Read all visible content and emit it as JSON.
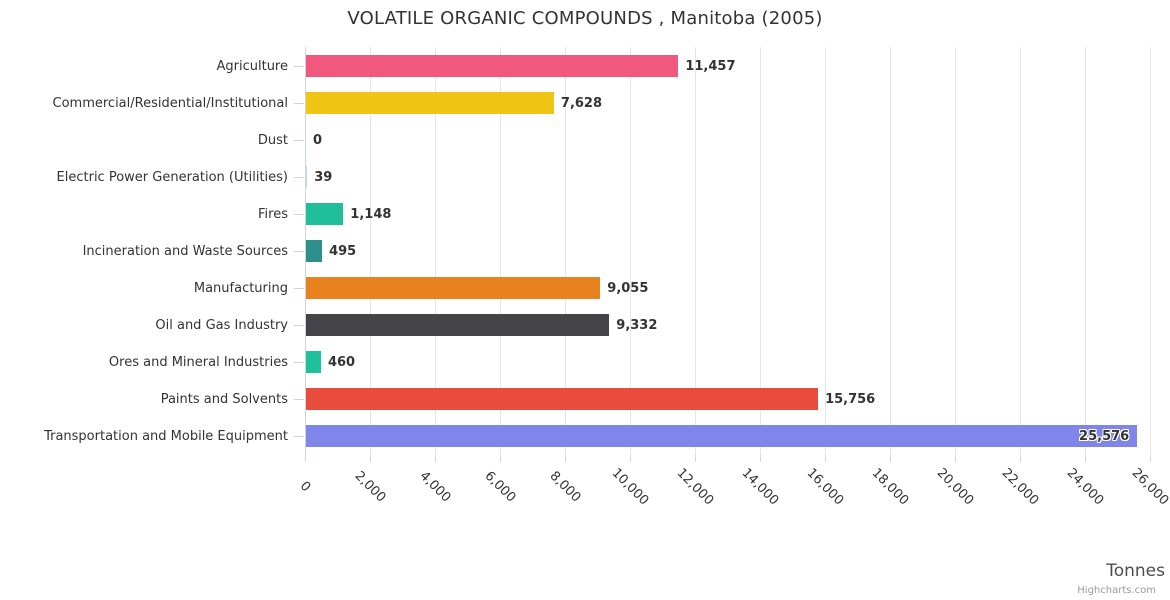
{
  "title": "VOLATILE ORGANIC COMPOUNDS , Manitoba (2005)",
  "credits_label": "Highcharts.com",
  "colors": {
    "background": "#ffffff",
    "grid_line": "#e6e6e6",
    "axis_line": "#ccd6eb",
    "title_text": "#333333",
    "category_text": "#333333",
    "value_text": "#333333",
    "axis_title_text": "#4d4d4d",
    "credits_text": "#999999"
  },
  "chart_data": {
    "type": "bar",
    "orientation": "horizontal",
    "title": "VOLATILE ORGANIC COMPOUNDS , Manitoba (2005)",
    "categories": [
      "Agriculture",
      "Commercial/Residential/Institutional",
      "Dust",
      "Electric Power Generation (Utilities)",
      "Fires",
      "Incineration and Waste Sources",
      "Manufacturing",
      "Oil and Gas Industry",
      "Ores and Mineral Industries",
      "Paints and Solvents",
      "Transportation and Mobile Equipment"
    ],
    "values": [
      11457,
      7628,
      0,
      39,
      1148,
      495,
      9055,
      9332,
      460,
      15756,
      25576
    ],
    "value_labels": [
      "11,457",
      "7,628",
      "0",
      "39",
      "1,148",
      "495",
      "9,055",
      "9,332",
      "460",
      "15,756",
      "25,576"
    ],
    "bar_colors": [
      "#f0587e",
      "#f0c514",
      "#ccd6eb",
      "#ccd6eb",
      "#21be9b",
      "#2e8f8d",
      "#e8821f",
      "#434348",
      "#1fc09c",
      "#e74c3c",
      "#8085e9"
    ],
    "value_label_inside": [
      false,
      false,
      false,
      false,
      false,
      false,
      false,
      false,
      false,
      false,
      true
    ],
    "xlabel": "Tonnes",
    "ylabel": "",
    "xlim": [
      0,
      26000
    ],
    "x_tick_interval": 2000,
    "x_tick_labels": [
      "0",
      "2,000",
      "4,000",
      "6,000",
      "8,000",
      "10,000",
      "12,000",
      "14,000",
      "16,000",
      "18,000",
      "20,000",
      "22,000",
      "24,000",
      "26,000"
    ],
    "grid": true,
    "legend": false
  }
}
